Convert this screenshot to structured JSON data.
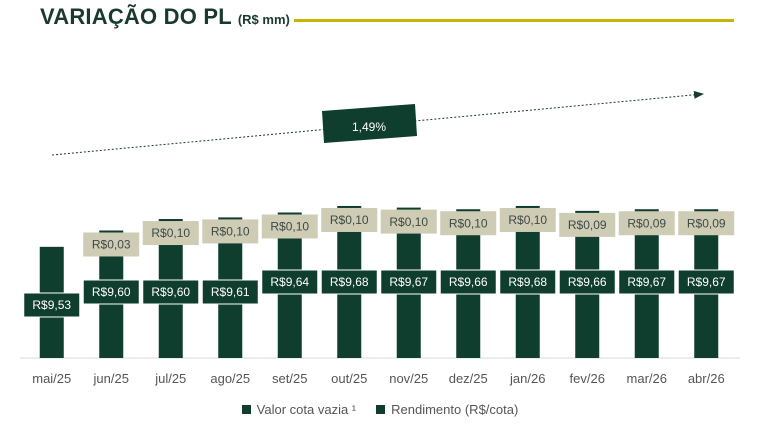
{
  "title": "VARIAÇÃO DO PL",
  "title_unit": "(R$ mm)",
  "chart_data": {
    "type": "bar",
    "stacked": true,
    "categories": [
      "mai/25",
      "jun/25",
      "jul/25",
      "ago/25",
      "set/25",
      "out/25",
      "nov/25",
      "dez/25",
      "jan/26",
      "fev/26",
      "mar/26",
      "abr/26"
    ],
    "series": [
      {
        "name": "Valor cota vazia ¹",
        "values": [
          9.53,
          9.6,
          9.6,
          9.61,
          9.64,
          9.68,
          9.67,
          9.66,
          9.68,
          9.66,
          9.67,
          9.67
        ],
        "labels": [
          "R$9,53",
          "R$9,60",
          "R$9,60",
          "R$9,61",
          "R$9,64",
          "R$9,68",
          "R$9,67",
          "R$9,66",
          "R$9,68",
          "R$9,66",
          "R$9,67",
          "R$9,67"
        ],
        "color": "#0f3d2e"
      },
      {
        "name": "Rendimento (R$/cota)",
        "values": [
          0,
          0.03,
          0.1,
          0.1,
          0.1,
          0.1,
          0.1,
          0.1,
          0.1,
          0.09,
          0.09,
          0.09
        ],
        "labels": [
          "",
          "R$0,03",
          "R$0,10",
          "R$0,10",
          "R$0,10",
          "R$0,10",
          "R$0,10",
          "R$0,10",
          "R$0,10",
          "R$0,09",
          "R$0,09",
          "R$0,09"
        ],
        "color": "#0f3d2e"
      }
    ],
    "annotation": "1,49%",
    "colors": {
      "bar": "#0f3d2e",
      "value_label_bg": "#0f3d2e",
      "value_label_text": "#ffffff",
      "income_label_bg": "#cfccb6",
      "income_label_text": "#3d4a44",
      "axis_text": "#555555",
      "title_line": "#c8b400"
    }
  }
}
